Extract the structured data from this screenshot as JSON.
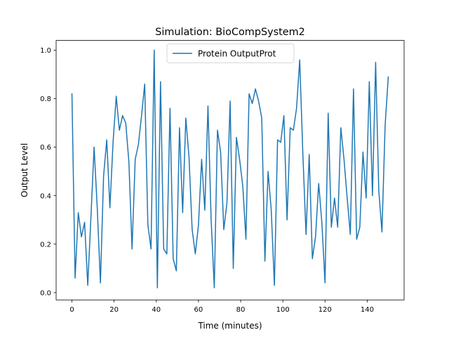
{
  "chart_data": {
    "type": "line",
    "title": "Simulation: BioCompSystem2",
    "xlabel": "Time (minutes)",
    "ylabel": "Output Level",
    "xlim": [
      -7.5,
      157.5
    ],
    "ylim": [
      -0.03,
      1.04
    ],
    "xticks": [
      0,
      20,
      40,
      60,
      80,
      100,
      120,
      140
    ],
    "yticks": [
      0.0,
      0.2,
      0.4,
      0.6,
      0.8,
      1.0
    ],
    "xtick_labels": [
      "0",
      "20",
      "40",
      "60",
      "80",
      "100",
      "120",
      "140"
    ],
    "ytick_labels": [
      "0.0",
      "0.2",
      "0.4",
      "0.6",
      "0.8",
      "1.0"
    ],
    "grid": false,
    "legend_position": "upper-center",
    "series": [
      {
        "name": "Protein OutputProt",
        "color": "#1f77b4",
        "x": [
          0,
          1.5,
          3,
          4.5,
          6,
          7.5,
          9,
          10.5,
          12,
          13.5,
          15,
          16.5,
          18,
          19.5,
          21,
          22.5,
          24,
          25.5,
          27,
          28.5,
          30,
          31.5,
          33,
          34.5,
          36,
          37.5,
          39,
          40.5,
          42,
          43.5,
          45,
          46.5,
          48,
          49.5,
          51,
          52.5,
          54,
          55.5,
          57,
          58.5,
          60,
          61.5,
          63,
          64.5,
          66,
          67.5,
          69,
          70.5,
          72,
          73.5,
          75,
          76.5,
          78,
          79.5,
          81,
          82.5,
          84,
          85.5,
          87,
          88.5,
          90,
          91.5,
          93,
          94.5,
          96,
          97.5,
          99,
          100.5,
          102,
          103.5,
          105,
          106.5,
          108,
          109.5,
          111,
          112.5,
          114,
          115.5,
          117,
          118.5,
          120,
          121.5,
          123,
          124.5,
          126,
          127.5,
          129,
          130.5,
          132,
          133.5,
          135,
          136.5,
          138,
          139.5,
          141,
          142.5,
          144,
          145.5,
          147,
          148.5,
          150
        ],
        "y": [
          0.82,
          0.06,
          0.33,
          0.23,
          0.29,
          0.03,
          0.31,
          0.6,
          0.35,
          0.04,
          0.48,
          0.63,
          0.35,
          0.62,
          0.81,
          0.67,
          0.73,
          0.7,
          0.54,
          0.18,
          0.55,
          0.61,
          0.73,
          0.86,
          0.28,
          0.18,
          1.0,
          0.02,
          0.87,
          0.18,
          0.16,
          0.76,
          0.14,
          0.09,
          0.68,
          0.33,
          0.72,
          0.56,
          0.26,
          0.16,
          0.28,
          0.55,
          0.34,
          0.77,
          0.3,
          0.02,
          0.67,
          0.58,
          0.26,
          0.37,
          0.79,
          0.1,
          0.64,
          0.55,
          0.44,
          0.22,
          0.82,
          0.78,
          0.84,
          0.79,
          0.72,
          0.13,
          0.5,
          0.34,
          0.03,
          0.63,
          0.62,
          0.73,
          0.3,
          0.68,
          0.67,
          0.76,
          0.96,
          0.57,
          0.24,
          0.57,
          0.14,
          0.23,
          0.45,
          0.29,
          0.04,
          0.74,
          0.27,
          0.39,
          0.27,
          0.68,
          0.55,
          0.39,
          0.24,
          0.84,
          0.22,
          0.27,
          0.58,
          0.39,
          0.87,
          0.4,
          0.95,
          0.42,
          0.25,
          0.69,
          0.89
        ]
      }
    ]
  }
}
